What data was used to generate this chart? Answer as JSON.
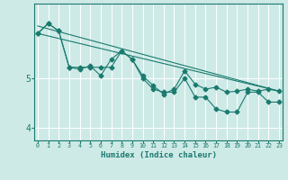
{
  "xlabel": "Humidex (Indice chaleur)",
  "x": [
    0,
    1,
    2,
    3,
    4,
    5,
    6,
    7,
    8,
    9,
    10,
    11,
    12,
    13,
    14,
    15,
    16,
    17,
    18,
    19,
    20,
    21,
    22,
    23
  ],
  "line1": [
    5.9,
    6.1,
    5.95,
    5.22,
    5.18,
    5.25,
    5.05,
    5.38,
    5.55,
    5.38,
    5.05,
    4.85,
    4.68,
    4.78,
    5.15,
    4.88,
    4.78,
    4.82,
    4.72,
    4.74,
    4.78,
    4.74,
    4.78,
    4.74
  ],
  "line2": [
    5.9,
    6.1,
    5.95,
    5.22,
    5.22,
    5.22,
    5.22,
    5.22,
    5.55,
    5.38,
    5.0,
    4.78,
    4.72,
    4.72,
    5.0,
    4.62,
    4.62,
    4.38,
    4.32,
    4.32,
    4.72,
    4.72,
    4.52,
    4.52
  ],
  "trend1_x": [
    0,
    23
  ],
  "trend1_y": [
    6.05,
    4.74
  ],
  "trend2_x": [
    0,
    23
  ],
  "trend2_y": [
    5.9,
    4.74
  ],
  "ylim": [
    3.75,
    6.5
  ],
  "xlim": [
    -0.3,
    23.3
  ],
  "yticks": [
    4,
    5
  ],
  "xticks": [
    0,
    1,
    2,
    3,
    4,
    5,
    6,
    7,
    8,
    9,
    10,
    11,
    12,
    13,
    14,
    15,
    16,
    17,
    18,
    19,
    20,
    21,
    22,
    23
  ],
  "line_color": "#1a7a6e",
  "bg_color": "#ceeae7",
  "grid_color": "#b0d8d4",
  "marker": "D",
  "marker_size": 2.5
}
